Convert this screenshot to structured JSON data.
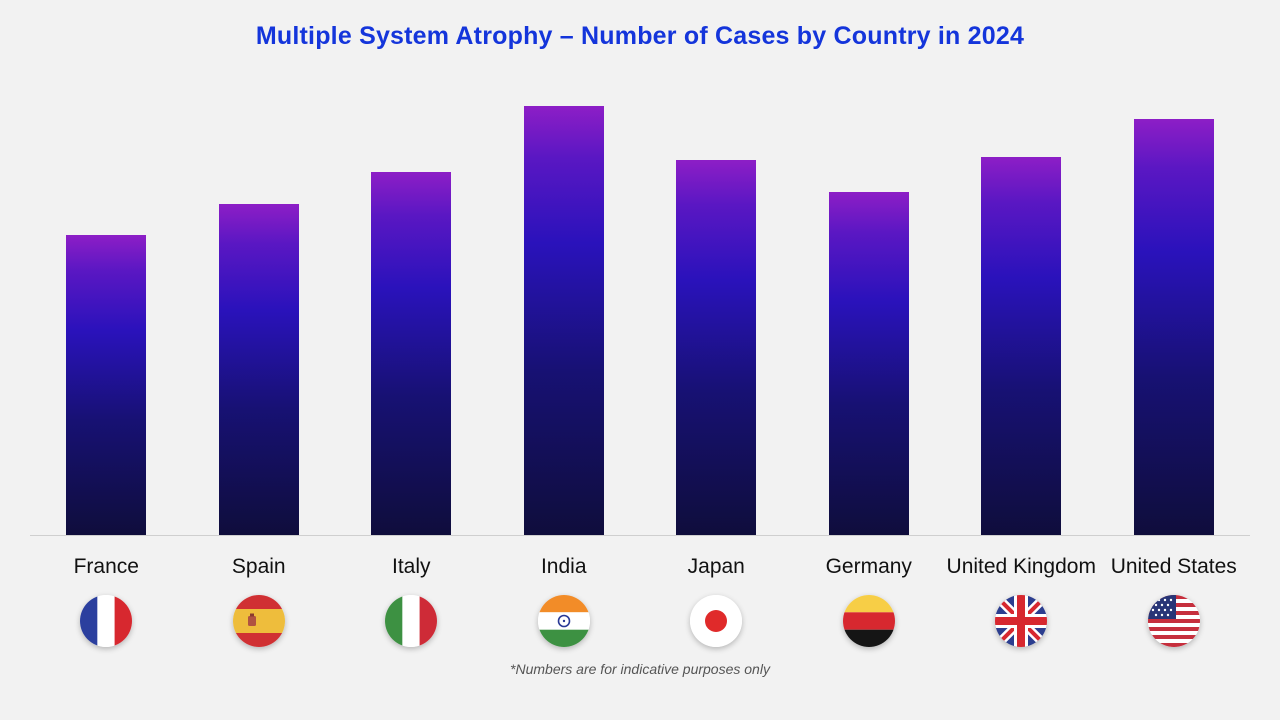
{
  "chart_data": {
    "type": "bar",
    "title": "Multiple System Atrophy – Number of Cases by Country in 2024",
    "title_color": "#1435db",
    "categories": [
      "France",
      "Spain",
      "Italy",
      "India",
      "Japan",
      "Germany",
      "United Kingdom",
      "United States"
    ],
    "values": [
      300,
      331,
      363,
      429,
      375,
      343,
      378,
      416
    ],
    "values_note": "No y-axis, gridlines or data labels are shown in the chart; values are estimated relative bar heights (pixels from baseline).",
    "normalized_percent_of_max": [
      70,
      77,
      85,
      100,
      87,
      80,
      88,
      97
    ],
    "xlabel": "",
    "ylabel": "",
    "y_axis": "none",
    "grid": "off",
    "legend": "none",
    "bar_gradient_top": "#8d1ec6",
    "bar_gradient_mid": "#2a12bb",
    "bar_gradient_bottom": "#0f0d3c",
    "footnote": "*Numbers are for indicative purposes only"
  },
  "flags": [
    {
      "country": "France",
      "icon": "france-flag-icon"
    },
    {
      "country": "Spain",
      "icon": "spain-flag-icon"
    },
    {
      "country": "Italy",
      "icon": "italy-flag-icon"
    },
    {
      "country": "India",
      "icon": "india-flag-icon"
    },
    {
      "country": "Japan",
      "icon": "japan-flag-icon"
    },
    {
      "country": "Germany",
      "icon": "germany-flag-icon"
    },
    {
      "country": "United Kingdom",
      "icon": "united-kingdom-flag-icon"
    },
    {
      "country": "United States",
      "icon": "united-states-flag-icon"
    }
  ]
}
